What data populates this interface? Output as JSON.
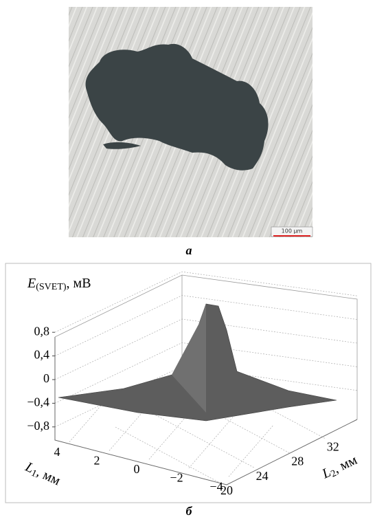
{
  "panel_a": {
    "scale_bar": "100 µm",
    "caption": "а"
  },
  "panel_b": {
    "caption": "б"
  },
  "chart_data": {
    "type": "surface",
    "zlabel": {
      "symbol": "E",
      "subscript": "(SVET)",
      "unit": ", мВ"
    },
    "xlabel": {
      "symbol": "L",
      "subscript": "1",
      "unit": ", мм"
    },
    "ylabel": {
      "symbol": "L",
      "subscript": "2",
      "unit": ", мм"
    },
    "zlim": [
      -1,
      1.2
    ],
    "zticks": [
      {
        "value": 0.8,
        "label": "0,8"
      },
      {
        "value": 0.4,
        "label": "0,4"
      },
      0,
      {
        "value": -0.4,
        "label": "−0,4"
      },
      {
        "value": -0.8,
        "label": "−0,8"
      }
    ],
    "xticks": [
      4,
      2,
      0,
      {
        "value": -2,
        "label": "−2"
      },
      {
        "value": -4,
        "label": "−4"
      }
    ],
    "yticks": [
      20,
      24,
      28,
      32
    ],
    "grid": true
  }
}
